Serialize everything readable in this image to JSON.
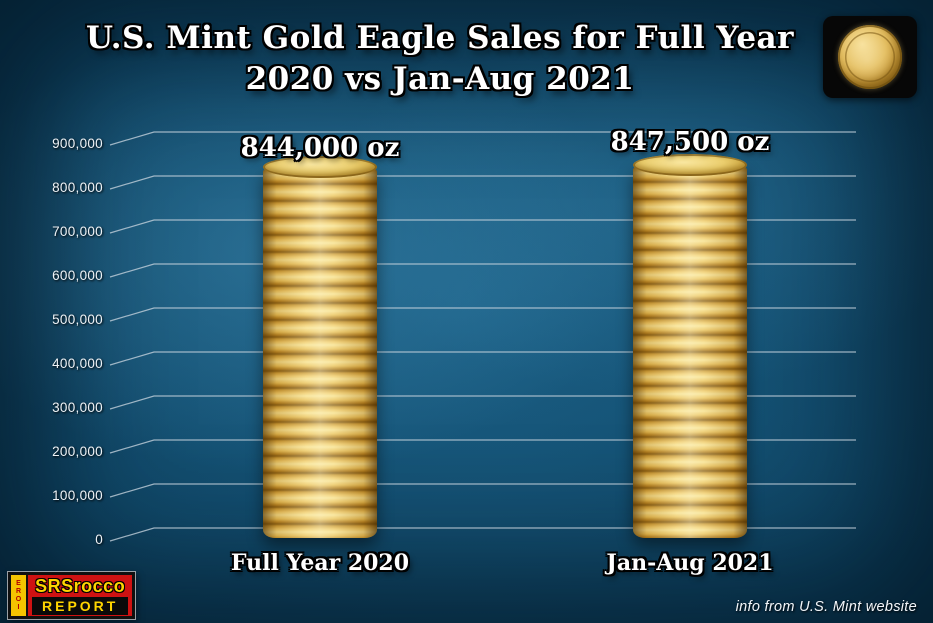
{
  "title": {
    "line1": "U.S. Mint Gold Eagle Sales for Full Year",
    "line2": "2020 vs Jan-Aug 2021"
  },
  "footer": {
    "source_note": "info from U.S. Mint website",
    "logo": {
      "vertical_text": "EROI",
      "line1": "SRSrocco",
      "line2": "REPORT"
    }
  },
  "icons": {
    "coin": "american-gold-eagle-coin"
  },
  "chart_data": {
    "type": "bar",
    "title": "U.S. Mint Gold Eagle Sales for Full Year 2020 vs Jan-Aug 2021",
    "categories": [
      "Full Year 2020",
      "Jan-Aug 2021"
    ],
    "values": [
      844000,
      847500
    ],
    "value_labels": [
      "844,000 oz",
      "847,500 oz"
    ],
    "unit": "oz",
    "ylim": [
      0,
      900000
    ],
    "ytick_interval": 100000,
    "ytick_labels": [
      "0",
      "100,000",
      "200,000",
      "300,000",
      "400,000",
      "500,000",
      "600,000",
      "700,000",
      "800,000",
      "900,000"
    ],
    "grid": true,
    "legend": "none",
    "bar_style": "gold-coin-stack",
    "background_color": "#0b3c58",
    "gold_color": "#d9ab3c"
  }
}
